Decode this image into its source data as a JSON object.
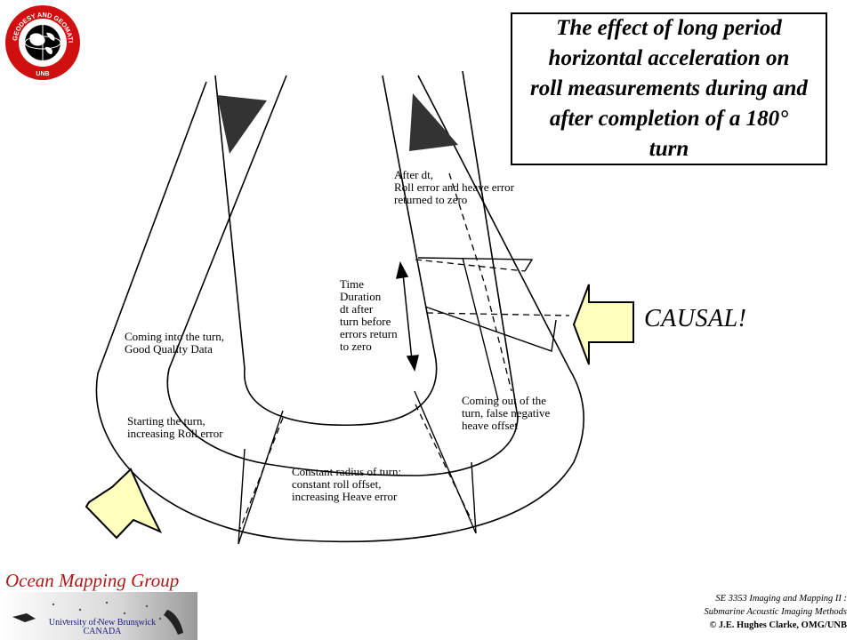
{
  "title": "The effect of long period\nhorizontal acceleration on\nroll measurements during and\nafter completion of a 180°\nturn",
  "logo": {
    "arc_text": "GEODESY AND GEOMATICS ENGINEERING",
    "bottom_text": "UNB"
  },
  "labels": {
    "after_dt": "After dt,\nRoll error and heave error\nreturned to zero",
    "time_duration": "Time\nDuration\ndt after\nturn before\nerrors return\nto zero",
    "coming_into": "Coming into the turn,\nGood Quality Data",
    "starting": "Starting the turn,\nincreasing Roll error",
    "constant_radius": "Constant radius of turn:\nconstant roll offset,\nincreasing Heave error",
    "coming_out": "Coming out of the\nturn, false negative\nheave offset",
    "causal": "CAUSAL!"
  },
  "footer": {
    "group_name": "Ocean Mapping Group",
    "university": "University of New Brunswick\nCANADA",
    "course_line1": "SE 3353 Imaging and Mapping II :",
    "course_line2": "Submarine Acoustic Imaging Methods",
    "copyright": "© J.E. Hughes Clarke, OMG/UNB"
  },
  "colors": {
    "arrow_fill": "#ffffbe",
    "group_red": "#b01818",
    "logo_red": "#d01010"
  }
}
